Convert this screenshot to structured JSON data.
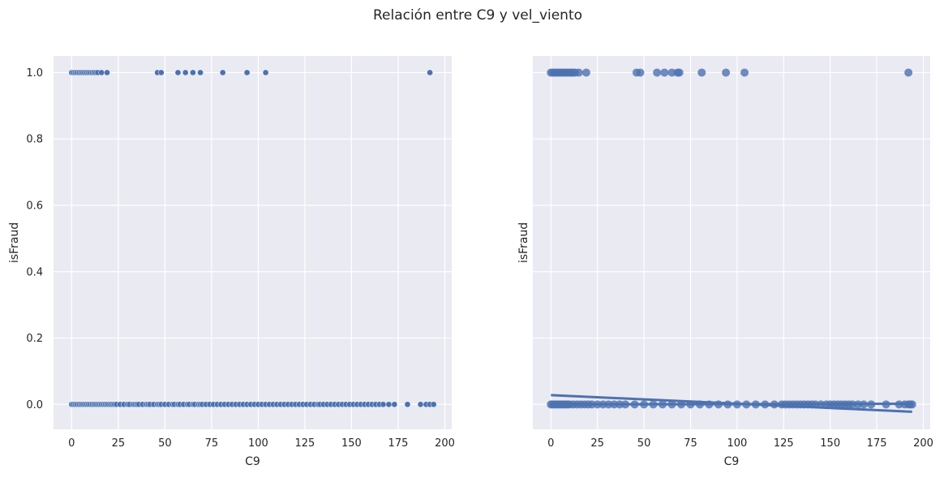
{
  "title": "Relación entre C9 y vel_viento",
  "colors": {
    "axes_bg": "#eaeaf2",
    "grid": "#ffffff",
    "points": "#4c72b0",
    "fit_line": "#4c72b0"
  },
  "chart_data": [
    {
      "type": "scatter",
      "xlabel": "C9",
      "ylabel": "isFraud",
      "xlim": [
        -9.7,
        203.7
      ],
      "ylim": [
        -0.075,
        1.05
      ],
      "xticks": [
        "0",
        "25",
        "50",
        "75",
        "100",
        "125",
        "150",
        "175",
        "200"
      ],
      "yticks": [
        "0.0",
        "0.2",
        "0.4",
        "0.6",
        "0.8",
        "1.0"
      ],
      "grid": true,
      "series": [
        {
          "values_y1_x": [
            0,
            1,
            2,
            3,
            4,
            5,
            6,
            7,
            8,
            9,
            10,
            11,
            12,
            13,
            14,
            16,
            19,
            46,
            48,
            57,
            61,
            65,
            69,
            81,
            94,
            104,
            192
          ],
          "values_y0_x": [
            0,
            1,
            2,
            3,
            4,
            5,
            6,
            7,
            8,
            9,
            10,
            11,
            12,
            13,
            14,
            15,
            16,
            17,
            18,
            19,
            20,
            21,
            22,
            23,
            24,
            26,
            28,
            30,
            31,
            33,
            34,
            35,
            36,
            38,
            40,
            41,
            42,
            44,
            46,
            47,
            48,
            50,
            52,
            54,
            55,
            57,
            58,
            60,
            62,
            63,
            65,
            66,
            68,
            69,
            70,
            72,
            74,
            76,
            78,
            80,
            82,
            84,
            86,
            88,
            90,
            92,
            94,
            96,
            98,
            100,
            102,
            104,
            106,
            108,
            110,
            112,
            114,
            116,
            118,
            120,
            122,
            124,
            126,
            128,
            130,
            132,
            133,
            135,
            137,
            139,
            141,
            143,
            145,
            147,
            149,
            151,
            153,
            155,
            157,
            159,
            161,
            163,
            165,
            167,
            170,
            173,
            180,
            187,
            190,
            192,
            194
          ]
        }
      ]
    },
    {
      "type": "scatter",
      "xlabel": "C9",
      "ylabel": "isFraud",
      "xlim": [
        -9.7,
        203.7
      ],
      "ylim": [
        -0.075,
        1.05
      ],
      "xticks": [
        "0",
        "25",
        "50",
        "75",
        "100",
        "125",
        "150",
        "175",
        "200"
      ],
      "yticks": [
        "0.0",
        "0.2",
        "0.4",
        "0.6",
        "0.8",
        "1.0"
      ],
      "grid": true,
      "series": [
        {
          "values_y1_x": [
            0,
            1,
            2,
            3,
            4,
            5,
            6,
            7,
            8,
            9,
            10,
            11,
            12,
            13,
            15,
            19,
            46,
            48,
            57,
            61,
            65,
            68,
            69,
            81,
            94,
            104,
            192
          ],
          "values_y0_x": [
            0,
            1,
            2,
            3,
            4,
            5,
            6,
            7,
            8,
            9,
            10,
            12,
            14,
            16,
            18,
            20,
            22,
            25,
            28,
            31,
            34,
            37,
            40,
            45,
            50,
            55,
            60,
            65,
            70,
            75,
            80,
            85,
            90,
            95,
            100,
            105,
            110,
            115,
            120,
            124,
            126,
            128,
            130,
            132,
            134,
            136,
            138,
            140,
            142,
            145,
            148,
            150,
            152,
            154,
            156,
            158,
            160,
            162,
            165,
            168,
            172,
            180,
            187,
            190,
            192,
            193,
            194
          ]
        }
      ],
      "fit_lines": [
        {
          "x": [
            0,
            194
          ],
          "y": [
            0.028,
            -0.022
          ]
        },
        {
          "x": [
            0,
            194
          ],
          "y": [
            0.0,
            0.002
          ]
        }
      ]
    }
  ]
}
